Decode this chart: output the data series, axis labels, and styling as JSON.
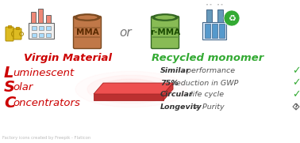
{
  "background_color": "#ffffff",
  "virgin_label": "Virgin Material",
  "recycled_label": "Recycled monomer",
  "lsc_letters": [
    "L",
    "S",
    "C"
  ],
  "lsc_words": [
    "uminescent",
    "olar",
    "oncentrators"
  ],
  "lsc_color": "#cc0000",
  "virgin_color": "#cc0000",
  "recycled_color": "#33aa33",
  "or_text": "or",
  "bullet_items": [
    {
      "bold": "Similar",
      "normal": " performance",
      "symbol": "✓",
      "sym_color": "#33aa33"
    },
    {
      "bold": "75%",
      "normal": " reduction in GWP",
      "symbol": "✓",
      "sym_color": "#33aa33"
    },
    {
      "bold": "Circular",
      "normal": " life cycle",
      "symbol": "✓",
      "sym_color": "#33aa33"
    },
    {
      "bold": "Longevity",
      "normal": " ≡ Purity",
      "symbol": "?",
      "sym_color": "#666666"
    }
  ],
  "mma_barrel_color": "#c07848",
  "mma_barrel_edge": "#7a4a20",
  "rmma_barrel_color": "#88bb55",
  "rmma_barrel_edge": "#336622",
  "plate_top_color": "#ee5050",
  "plate_side_color": "#bb3030",
  "plate_right_color": "#cc3838",
  "glow_color": "#ffbbbb",
  "factory_left_wall": "#f0f0f0",
  "factory_left_chimney": "#ee8877",
  "factory_right_wall": "#ddeeff",
  "factory_right_chimney": "#6699bb",
  "recycle_circle": "#33aa33",
  "footnote": "Factory icons created by Freepik - Flaticon",
  "fig_w": 3.78,
  "fig_h": 1.81,
  "dpi": 100
}
